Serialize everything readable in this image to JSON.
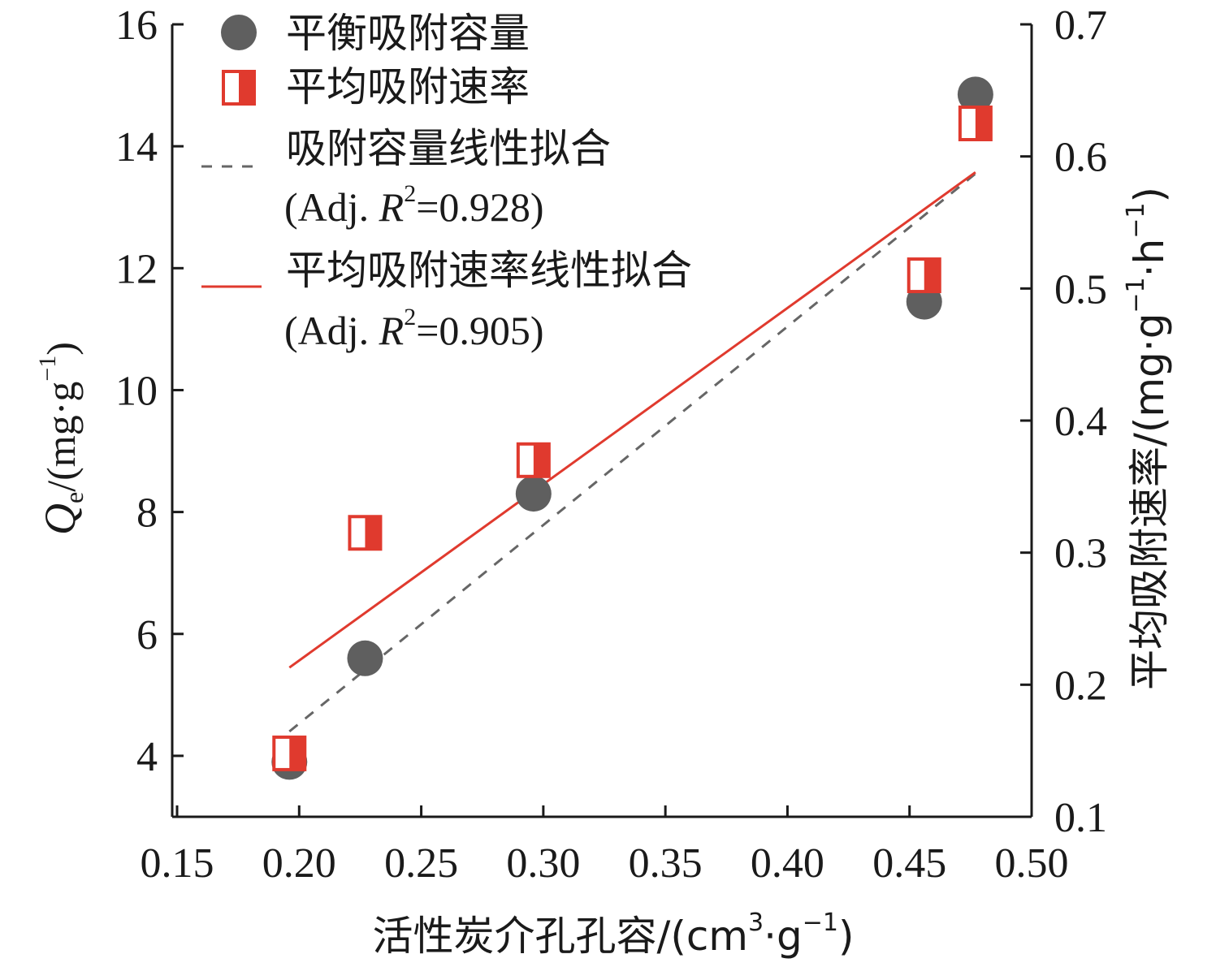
{
  "chart_data": {
    "type": "scatter",
    "x": [
      0.196,
      0.227,
      0.296,
      0.456,
      0.477
    ],
    "x_axis": {
      "label_main": "活性炭介孔孔容/(cm",
      "label_sup1": "3",
      "label_mid": "·g",
      "label_sup2": "−1",
      "label_end": ")",
      "range": [
        0.148,
        0.5
      ],
      "ticks": [
        0.15,
        0.2,
        0.25,
        0.3,
        0.35,
        0.4,
        0.45,
        0.5
      ],
      "tick_labels": [
        "0.15",
        "0.20",
        "0.25",
        "0.30",
        "0.35",
        "0.40",
        "0.45",
        "0.50"
      ]
    },
    "y_left": {
      "label_q": "Q",
      "label_sub": "e",
      "label_unit": "/(mg·g",
      "label_sup": "−1",
      "label_end": ")",
      "range": [
        3.0,
        16.0
      ],
      "ticks": [
        4,
        6,
        8,
        10,
        12,
        14,
        16
      ],
      "tick_labels": [
        "4",
        "6",
        "8",
        "10",
        "12",
        "14",
        "16"
      ]
    },
    "y_right": {
      "label_main": "平均吸附速率/(mg·g",
      "label_sup1": "−1",
      "label_mid": "·h",
      "label_sup2": "−1",
      "label_end": ")",
      "range": [
        0.1,
        0.7
      ],
      "ticks": [
        0.1,
        0.2,
        0.3,
        0.4,
        0.5,
        0.6,
        0.7
      ],
      "tick_labels": [
        "0.1",
        "0.2",
        "0.3",
        "0.4",
        "0.5",
        "0.6",
        "0.7"
      ]
    },
    "series": [
      {
        "name": "平衡吸附容量",
        "axis": "left",
        "marker": "circle",
        "color": "#5f5f5f",
        "values": [
          3.9,
          5.6,
          8.3,
          11.45,
          14.85
        ]
      },
      {
        "name": "平均吸附速率",
        "axis": "right",
        "marker": "half-square",
        "color": "#e03a2e",
        "values": [
          0.148,
          0.315,
          0.37,
          0.51,
          0.625
        ]
      }
    ],
    "fits": [
      {
        "name": "吸附容量线性拟合",
        "r2_label": "(Adj. ",
        "r2_r": "R",
        "r2_sup": "2",
        "r2_value": "=0.928)",
        "axis": "left",
        "style": "dashed",
        "color": "#666666",
        "x_range": [
          0.196,
          0.477
        ],
        "y_range": [
          4.4,
          13.55
        ]
      },
      {
        "name": "平均吸附速率线性拟合",
        "r2_label": "(Adj. ",
        "r2_r": "R",
        "r2_sup": "2",
        "r2_value": "=0.905)",
        "axis": "right",
        "style": "solid",
        "color": "#e03a2e",
        "x_range": [
          0.196,
          0.477
        ],
        "y_range": [
          0.213,
          0.588
        ]
      }
    ],
    "legend_position": "top-left",
    "grid": false
  }
}
